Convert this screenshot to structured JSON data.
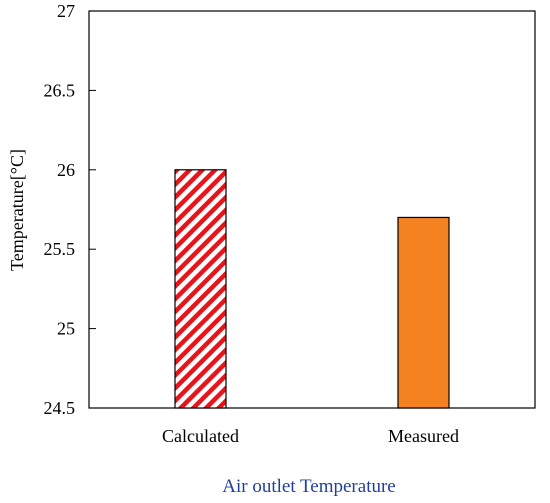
{
  "chart_data": {
    "type": "bar",
    "categories": [
      "Calculated",
      "Measured"
    ],
    "values": [
      26.0,
      25.7
    ],
    "ylabel": "Temperature[°C]",
    "xlabel": "Air outlet Temperature",
    "ylim": [
      24.5,
      27
    ],
    "yticks": [
      "24.5",
      "25",
      "25.5",
      "26",
      "26.5",
      "27"
    ],
    "grid": false,
    "bar_styles": [
      {
        "fill": "hatch",
        "colors": [
          "#e8141c",
          "#ffffff"
        ]
      },
      {
        "fill": "solid",
        "colors": [
          "#f58220"
        ]
      }
    ]
  }
}
